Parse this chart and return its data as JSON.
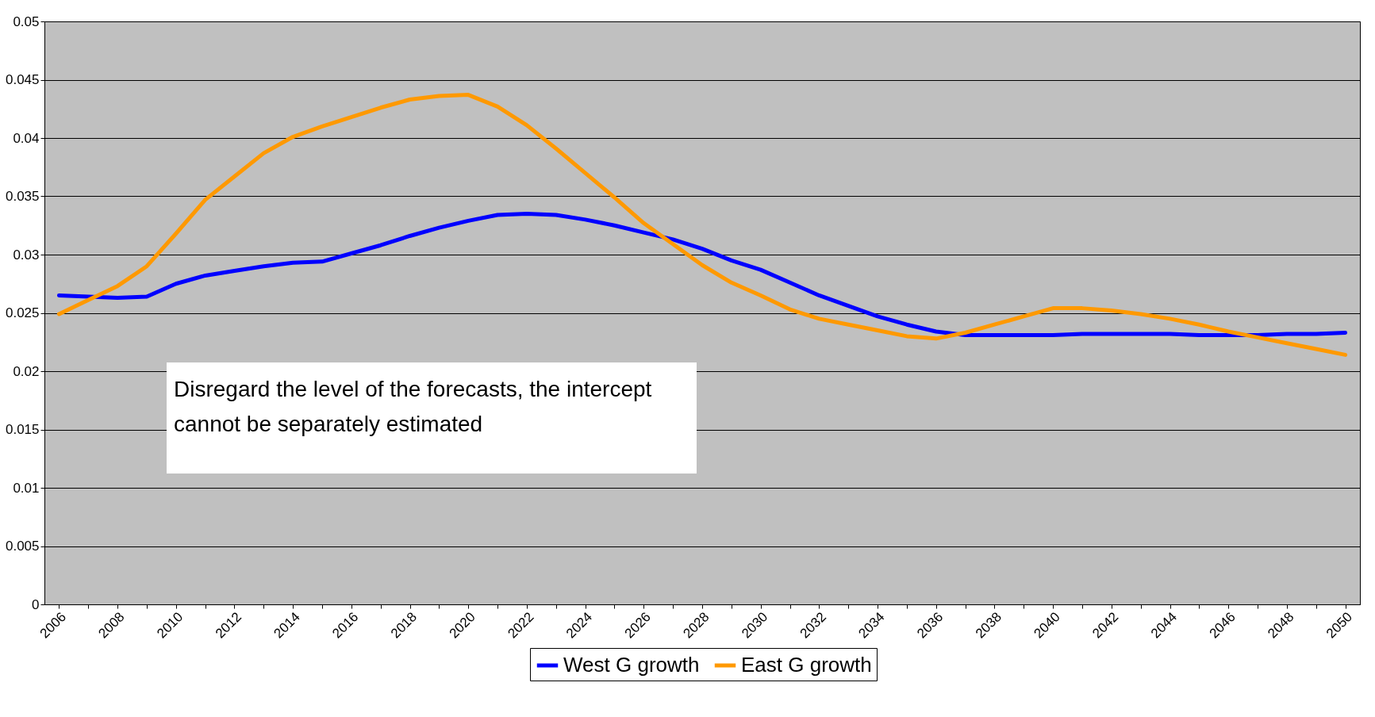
{
  "chart_data": {
    "type": "line",
    "categories": [
      "2006",
      null,
      "2008",
      null,
      "2010",
      null,
      "2012",
      null,
      "2014",
      null,
      "2016",
      null,
      "2018",
      null,
      "2020",
      null,
      "2022",
      null,
      "2024",
      null,
      "2026",
      null,
      "2028",
      null,
      "2030",
      null,
      "2032",
      null,
      "2034",
      null,
      "2036",
      null,
      "2038",
      null,
      "2040",
      null,
      "2042",
      null,
      "2044",
      null,
      "2046",
      null,
      "2048",
      null,
      "2050"
    ],
    "series": [
      {
        "name": "West G growth",
        "color": "#0000ff",
        "values": [
          0.0265,
          0.0264,
          0.0263,
          0.0264,
          0.0275,
          0.0282,
          0.0286,
          0.029,
          0.0293,
          0.0294,
          0.0301,
          0.0308,
          0.0316,
          0.0323,
          0.0329,
          0.0334,
          0.0335,
          0.0334,
          0.033,
          0.0325,
          0.0319,
          0.0313,
          0.0305,
          0.0295,
          0.0287,
          0.0276,
          0.0265,
          0.0256,
          0.0247,
          0.024,
          0.0234,
          0.0231,
          0.0231,
          0.0231,
          0.0231,
          0.0232,
          0.0232,
          0.0232,
          0.0232,
          0.0231,
          0.0231,
          0.0231,
          0.0232,
          0.0232,
          0.0233
        ]
      },
      {
        "name": "East G growth",
        "color": "#ff9900",
        "values": [
          0.0249,
          0.0261,
          0.0273,
          0.029,
          0.0318,
          0.0347,
          0.0367,
          0.0387,
          0.0401,
          0.041,
          0.0418,
          0.0426,
          0.0433,
          0.0436,
          0.0437,
          0.0427,
          0.0411,
          0.0391,
          0.037,
          0.0349,
          0.0327,
          0.0309,
          0.0291,
          0.0276,
          0.0265,
          0.0253,
          0.0245,
          0.024,
          0.0235,
          0.023,
          0.0228,
          0.0233,
          0.024,
          0.0247,
          0.0254,
          0.0254,
          0.0252,
          0.0249,
          0.0245,
          0.024,
          0.0234,
          0.0229,
          0.0224,
          0.0219,
          0.0214
        ]
      }
    ],
    "ylim": [
      0,
      0.05
    ],
    "yticks": [
      0,
      0.005,
      0.01,
      0.015,
      0.02,
      0.025,
      0.03,
      0.035,
      0.04,
      0.045,
      0.05
    ],
    "grid": "y",
    "legend": "bottom",
    "line_style": "solid",
    "annotations": [
      "Disregard the level of the forecasts, the intercept cannot be separately estimated"
    ]
  }
}
